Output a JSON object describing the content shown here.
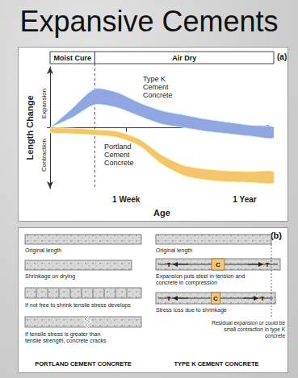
{
  "title": "Expansive Cements",
  "chart_data": {
    "type": "line",
    "label": "(a)",
    "x_label": "Age",
    "y_label": "Length Change",
    "y_directions": {
      "up": "Expansion",
      "down": "Contraction"
    },
    "phases": [
      {
        "label": "Moist Cure",
        "start": 0,
        "end": 2
      },
      {
        "label": "Air Dry",
        "start": 2,
        "end": 10
      }
    ],
    "x": [
      0,
      1,
      2,
      3,
      4,
      5,
      6,
      7,
      8,
      9,
      10
    ],
    "xlim": [
      0,
      10
    ],
    "xticks": [
      {
        "value": 3.4,
        "label": "1 Week"
      },
      {
        "value": 8.7,
        "label": "1 Year"
      }
    ],
    "ylim": [
      -10,
      10
    ],
    "yticks": [],
    "tick_labels": "x",
    "grid": false,
    "series": [
      {
        "name": "Type K\nCement\nConcrete",
        "color": "#8fa6e0",
        "upper": [
          0,
          3.2,
          6.4,
          5.8,
          4.1,
          2.8,
          2.1,
          1.4,
          0.9,
          0.4,
          0.1
        ],
        "lower": [
          0,
          1.7,
          3.8,
          3.3,
          1.9,
          0.6,
          0,
          -0.6,
          -1.0,
          -1.4,
          -1.7
        ]
      },
      {
        "name": "Portland\nCement\nConcrete",
        "color": "#f4c46e",
        "upper": [
          -0.1,
          -0.1,
          -0.3,
          -0.6,
          -1.9,
          -4.5,
          -6.2,
          -6.8,
          -7.1,
          -7.2,
          -7.2
        ],
        "lower": [
          -0.8,
          -1.0,
          -1.2,
          -1.6,
          -3.0,
          -6.0,
          -7.9,
          -8.6,
          -8.9,
          -9.0,
          -9.1
        ]
      }
    ]
  },
  "panel_b": {
    "label": "(b)",
    "symbols": {
      "tension": "T",
      "compression": "C"
    },
    "columns": [
      {
        "heading": "PORTLAND CEMENT CONCRETE",
        "steps": [
          [
            "Original length"
          ],
          [
            "Shrinkage on drying"
          ],
          [
            "If not free to shrink tensile stress develops"
          ],
          [
            "If tensile stress is greater than",
            "tensile strength, concrete cracks"
          ]
        ]
      },
      {
        "heading": "TYPE K CEMENT CONCRETE",
        "steps": [
          [
            "Original length"
          ],
          [
            "Expansion puts steel in tension and",
            "concrete in compression"
          ],
          [
            "Stress loss due to shrinkage"
          ]
        ],
        "note": [
          "Residual expansion or could be",
          "small contraction in type K",
          "concrete"
        ]
      }
    ]
  }
}
